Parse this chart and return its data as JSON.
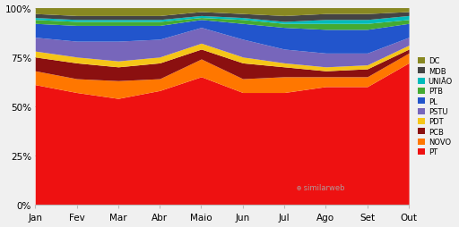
{
  "months": [
    "Jan",
    "Fev",
    "Mar",
    "Abr",
    "Maio",
    "Jun",
    "Jul",
    "Ago",
    "Set",
    "Out"
  ],
  "parties": [
    "PT",
    "NOVO",
    "PCB",
    "PDT",
    "PSTU",
    "PL",
    "PTB",
    "UNIÃO",
    "MDB",
    "DC"
  ],
  "colors": [
    "#ee1111",
    "#ff7700",
    "#8b1010",
    "#f5c518",
    "#7766bb",
    "#2255cc",
    "#44aa33",
    "#00bbbb",
    "#444444",
    "#888822"
  ],
  "data": {
    "PT": [
      61,
      57,
      54,
      58,
      65,
      57,
      57,
      60,
      60,
      72
    ],
    "NOVO": [
      7,
      7,
      9,
      6,
      9,
      7,
      8,
      5,
      5,
      5
    ],
    "PCB": [
      7,
      8,
      7,
      8,
      5,
      8,
      5,
      3,
      4,
      2
    ],
    "PDT": [
      3,
      3,
      3,
      3,
      3,
      3,
      2,
      2,
      2,
      2
    ],
    "PSTU": [
      7,
      8,
      10,
      9,
      8,
      9,
      7,
      7,
      6,
      4
    ],
    "PL": [
      7,
      8,
      8,
      7,
      4,
      8,
      11,
      12,
      12,
      7
    ],
    "PTB": [
      2,
      2,
      2,
      2,
      1,
      2,
      2,
      3,
      3,
      2
    ],
    "UNIÃO": [
      1,
      1,
      1,
      1,
      1,
      1,
      1,
      2,
      2,
      2
    ],
    "MDB": [
      2,
      2,
      2,
      2,
      2,
      2,
      3,
      3,
      3,
      2
    ],
    "DC": [
      3,
      4,
      4,
      4,
      2,
      3,
      4,
      3,
      3,
      2
    ]
  },
  "background_color": "#f0f0f0",
  "plot_bg_color": "#ffffff",
  "watermark": "ɵ similarweb",
  "figsize": [
    5.12,
    2.55
  ],
  "dpi": 100
}
